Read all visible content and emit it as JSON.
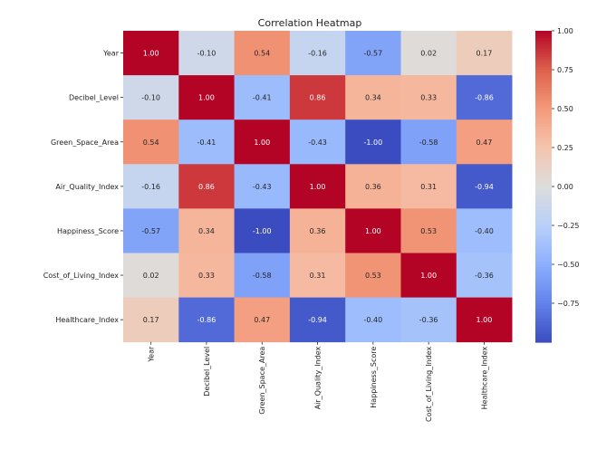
{
  "chart_data": {
    "type": "heatmap",
    "title": "Correlation Heatmap",
    "rows": [
      "Year",
      "Decibel_Level",
      "Green_Space_Area",
      "Air_Quality_Index",
      "Happiness_Score",
      "Cost_of_Living_Index",
      "Healthcare_Index"
    ],
    "columns": [
      "Year",
      "Decibel_Level",
      "Green_Space_Area",
      "Air_Quality_Index",
      "Happiness_Score",
      "Cost_of_Living_Index",
      "Healthcare_Index"
    ],
    "values": [
      [
        1.0,
        -0.1,
        0.54,
        -0.16,
        -0.57,
        0.02,
        0.17
      ],
      [
        -0.1,
        1.0,
        -0.41,
        0.86,
        0.34,
        0.33,
        -0.86
      ],
      [
        0.54,
        -0.41,
        1.0,
        -0.43,
        -1.0,
        -0.58,
        0.47
      ],
      [
        -0.16,
        0.86,
        -0.43,
        1.0,
        0.36,
        0.31,
        -0.94
      ],
      [
        -0.57,
        0.34,
        -1.0,
        0.36,
        1.0,
        0.53,
        -0.4
      ],
      [
        0.02,
        0.33,
        -0.58,
        0.31,
        0.53,
        1.0,
        -0.36
      ],
      [
        0.17,
        -0.86,
        0.47,
        -0.94,
        -0.4,
        -0.36,
        1.0
      ]
    ],
    "value_format": "0.00",
    "colormap": "coolwarm",
    "colorbar": {
      "range": [
        -1.0,
        1.0
      ],
      "ticks": [
        1.0,
        0.75,
        0.5,
        0.25,
        0.0,
        -0.25,
        -0.5,
        -0.75
      ],
      "tick_labels": [
        "1.00",
        "0.75",
        "0.50",
        "0.25",
        "0.00",
        "−0.25",
        "−0.50",
        "−0.75"
      ]
    },
    "colors": {
      "low": "#3b4cc0",
      "mid": "#dddddd",
      "high": "#b40426"
    }
  }
}
